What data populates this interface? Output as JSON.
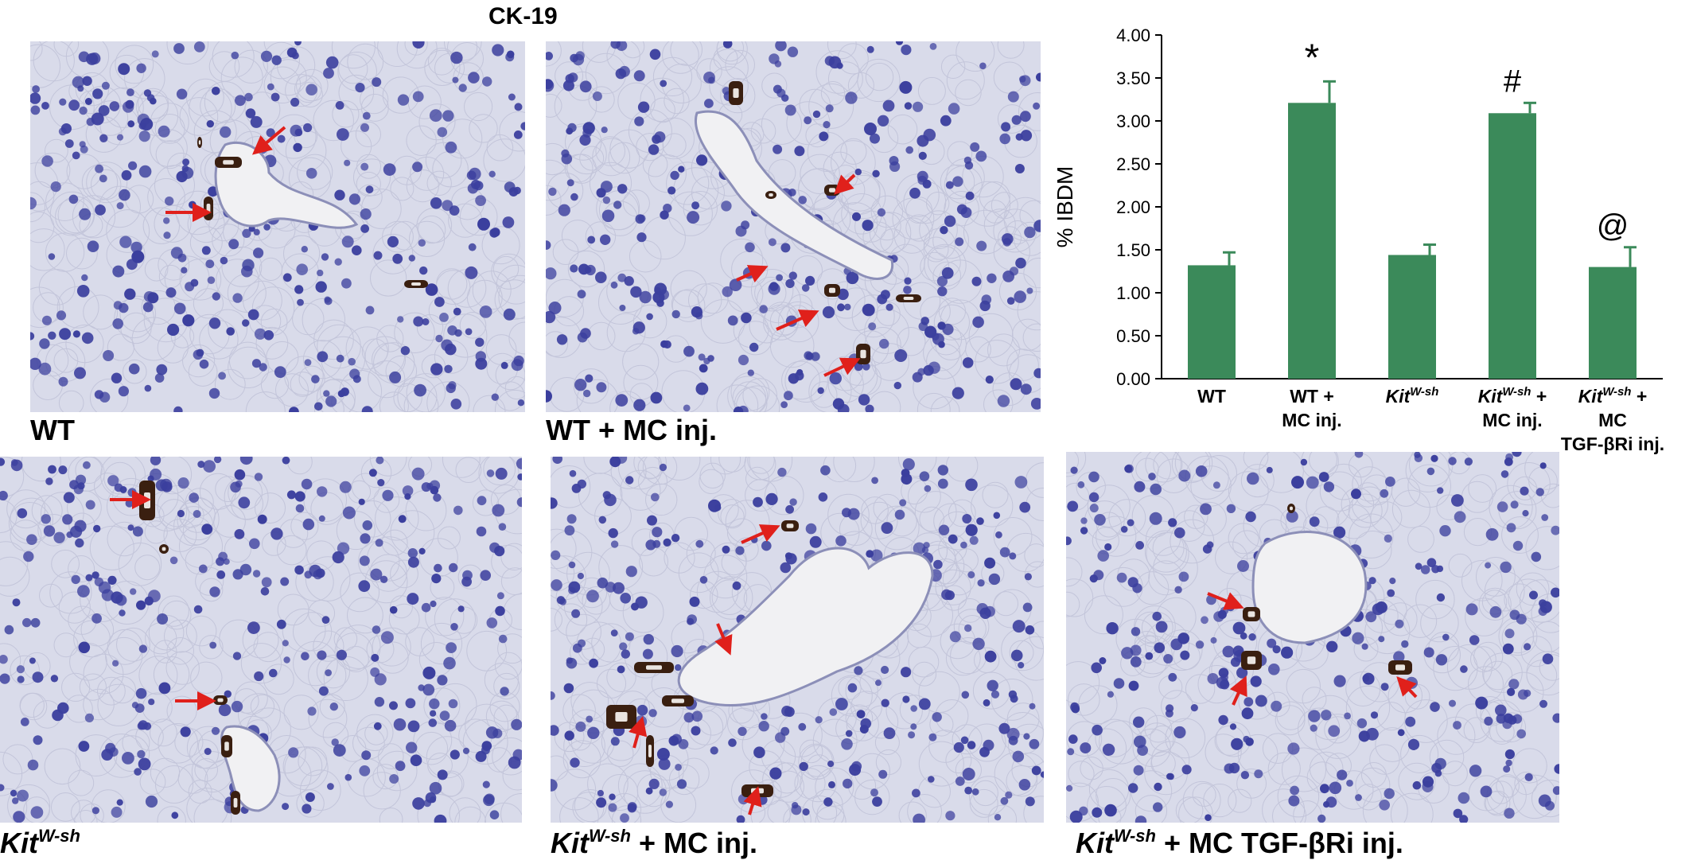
{
  "figure_title": "CK-19",
  "panels": [
    {
      "id": "wt",
      "label": "WT",
      "label_sup": "",
      "label_rest": ""
    },
    {
      "id": "wt-mc",
      "label": "WT + MC inj.",
      "label_sup": "",
      "label_rest": ""
    },
    {
      "id": "kit",
      "label": "Kit",
      "label_sup": "W-sh",
      "label_rest": ""
    },
    {
      "id": "kit-mc",
      "label": "Kit",
      "label_sup": "W-sh",
      "label_rest": " + MC inj."
    },
    {
      "id": "kit-mc-tgf",
      "label": "Kit",
      "label_sup": "W-sh",
      "label_rest": " + MC TGF-βRi inj."
    }
  ],
  "colors": {
    "bar": "#3b8a5a",
    "arrow": "#e0201b",
    "tissue": "#d9dbea",
    "nuclei": "#3b3f9e",
    "duct": "#3a1f10"
  },
  "chart_data": {
    "type": "bar",
    "ylabel": "% IBDM",
    "ylim": [
      0,
      4
    ],
    "yticks": [
      "0.00",
      "0.50",
      "1.00",
      "1.50",
      "2.00",
      "2.50",
      "3.00",
      "3.50",
      "4.00"
    ],
    "categories": [
      {
        "lines": [
          {
            "main": "WT",
            "sup": "",
            "rest": ""
          }
        ]
      },
      {
        "lines": [
          {
            "main": "WT +",
            "sup": "",
            "rest": ""
          },
          {
            "main": "MC inj.",
            "sup": "",
            "rest": ""
          }
        ]
      },
      {
        "lines": [
          {
            "main": "Kit",
            "sup": "W-sh",
            "rest": ""
          }
        ]
      },
      {
        "lines": [
          {
            "main": "Kit",
            "sup": "W-sh",
            "rest": " +"
          },
          {
            "main": "MC inj.",
            "sup": "",
            "rest": ""
          }
        ]
      },
      {
        "lines": [
          {
            "main": "Kit",
            "sup": "W-sh",
            "rest": " +"
          },
          {
            "main": "MC",
            "sup": "",
            "rest": ""
          },
          {
            "main": "TGF-βRi inj.",
            "sup": "",
            "rest": ""
          }
        ]
      }
    ],
    "values": [
      1.32,
      3.21,
      1.44,
      3.09,
      1.3
    ],
    "errors": [
      0.15,
      0.25,
      0.12,
      0.12,
      0.23
    ],
    "annotations": [
      "",
      "*",
      "",
      "#",
      "@"
    ],
    "grid": false,
    "legend": "none"
  }
}
